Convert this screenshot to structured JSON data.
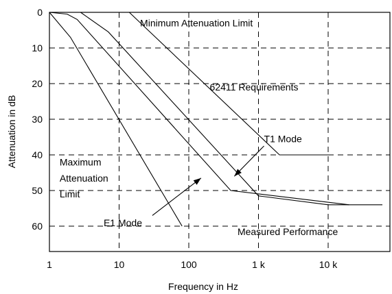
{
  "chart_data": {
    "type": "line",
    "title": "",
    "xlabel": "Frequency in Hz",
    "ylabel": "Attenuation in dB",
    "x_scale": "log",
    "x_range": [
      1,
      60000
    ],
    "y_range": [
      0,
      68
    ],
    "y_inverted": true,
    "grid": true,
    "x_ticks": [
      {
        "value": 1,
        "label": "1"
      },
      {
        "value": 10,
        "label": "10"
      },
      {
        "value": 100,
        "label": "100"
      },
      {
        "value": 1000,
        "label": "1 k"
      },
      {
        "value": 10000,
        "label": "10 k"
      }
    ],
    "y_ticks": [
      {
        "value": 0,
        "label": "0"
      },
      {
        "value": 10,
        "label": "10"
      },
      {
        "value": 20,
        "label": "20"
      },
      {
        "value": 30,
        "label": "30"
      },
      {
        "value": 40,
        "label": "40"
      },
      {
        "value": 50,
        "label": "50"
      },
      {
        "value": 60,
        "label": "60"
      }
    ],
    "series": [
      {
        "key": "min-limit",
        "points": [
          [
            14,
            0
          ],
          [
            2000,
            40
          ],
          [
            10000,
            40
          ]
        ]
      },
      {
        "key": "t1-mode",
        "points": [
          [
            2.8,
            0
          ],
          [
            7,
            5.5
          ],
          [
            1000,
            51.5
          ],
          [
            10000,
            54
          ],
          [
            60000,
            54
          ]
        ]
      },
      {
        "key": "e1-mode",
        "points": [
          [
            1,
            0
          ],
          [
            1.8,
            0.5
          ],
          [
            2.5,
            2
          ],
          [
            400,
            50
          ],
          [
            20000,
            54
          ]
        ]
      },
      {
        "key": "max-limit",
        "points": [
          [
            1,
            0
          ],
          [
            2,
            7
          ],
          [
            80,
            60
          ]
        ]
      }
    ],
    "annotations": [
      {
        "key": "min_limit",
        "text": "Minimum Attenuation Limit",
        "x": 20,
        "y": 3,
        "anchor": "start"
      },
      {
        "key": "req",
        "text": "62411 Requirements",
        "x": 200,
        "y": 21,
        "anchor": "start"
      },
      {
        "key": "t1",
        "text": "T1 Mode",
        "x": 1200,
        "y": 35.5,
        "anchor": "start"
      },
      {
        "key": "max1",
        "text": "Maximum",
        "x": 1.4,
        "y": 42,
        "anchor": "start"
      },
      {
        "key": "max2",
        "text": "Attenuation",
        "x": 1.4,
        "y": 46.5,
        "anchor": "start"
      },
      {
        "key": "max3",
        "text": "Limit",
        "x": 1.4,
        "y": 51,
        "anchor": "start"
      },
      {
        "key": "e1",
        "text": "E1 Mode",
        "x": 6,
        "y": 59,
        "anchor": "start"
      },
      {
        "key": "measured",
        "text": "Measured Performance",
        "x": 500,
        "y": 61.5,
        "anchor": "start"
      }
    ],
    "arrows": [
      {
        "key": "t1-arrow",
        "from": [
          1200,
          37.5
        ],
        "to": [
          450,
          46
        ]
      },
      {
        "key": "e1-arrow",
        "from": [
          30,
          57
        ],
        "to": [
          150,
          46.5
        ]
      }
    ]
  }
}
